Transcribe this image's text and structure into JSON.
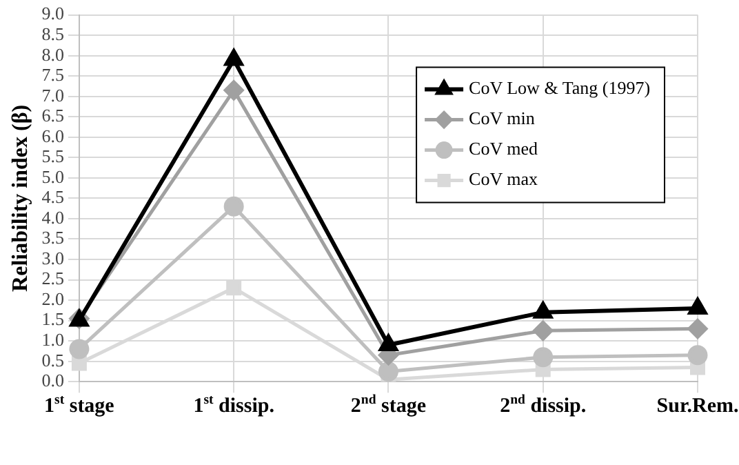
{
  "chart_data": {
    "type": "line",
    "ylabel": "Reliability index (β)",
    "categories": [
      "1$^{st}$ stage",
      "1$^{st}$ dissip.",
      "2$^{nd}$ stage",
      "2$^{nd}$ dissip.",
      "Sur.Rem."
    ],
    "series": [
      {
        "name": "CoV Low & Tang (1997)",
        "color": "#000000",
        "marker": "triangle",
        "values": [
          1.5,
          7.9,
          0.9,
          1.7,
          1.8
        ]
      },
      {
        "name": "CoV min",
        "color": "#a0a0a0",
        "marker": "diamond",
        "values": [
          1.55,
          7.15,
          0.65,
          1.25,
          1.3
        ]
      },
      {
        "name": "CoV med",
        "color": "#bfbfbf",
        "marker": "circle",
        "values": [
          0.8,
          4.3,
          0.25,
          0.6,
          0.65
        ]
      },
      {
        "name": "CoV max",
        "color": "#d9d9d9",
        "marker": "square",
        "values": [
          0.45,
          2.3,
          0.05,
          0.3,
          0.35
        ]
      }
    ],
    "ylim": [
      0,
      9
    ],
    "yticks": [
      {
        "value": 0,
        "label": "0.0"
      },
      0.5,
      {
        "value": 1,
        "label": "1.0"
      },
      1.5,
      {
        "value": 2,
        "label": "2.0"
      },
      2.5,
      {
        "value": 3,
        "label": "3.0"
      },
      3.5,
      {
        "value": 4,
        "label": "4.0"
      },
      4.5,
      {
        "value": 5,
        "label": "5.0"
      },
      5.5,
      {
        "value": 6,
        "label": "6.0"
      },
      6.5,
      {
        "value": 7,
        "label": "7.0"
      },
      7.5,
      {
        "value": 8,
        "label": "8.0"
      },
      8.5,
      {
        "value": 9,
        "label": "9.0"
      }
    ],
    "grid": true,
    "legend": "top right",
    "line_style": "solid"
  }
}
